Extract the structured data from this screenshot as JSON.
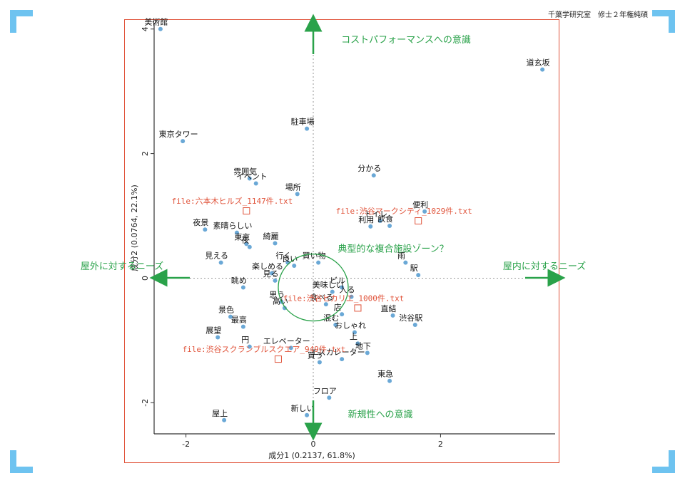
{
  "header_note": "千葉学研究室　修士２年権純碩",
  "colors": {
    "point": "#6aa8d6",
    "annotation": "#2aa24a",
    "file": "#e0533a",
    "frame": "#e0533a",
    "corner": "#6ec3f0"
  },
  "chart_data": {
    "type": "scatter",
    "xlabel": "成分1 (0.2137, 61.8%)",
    "ylabel": "成分2 (0.0764, 22.1%)",
    "xlim": [
      -2.5,
      3.8
    ],
    "ylim": [
      -2.5,
      4.1
    ],
    "xticks": [
      -2,
      0,
      2
    ],
    "yticks": [
      -2,
      0,
      2,
      4
    ],
    "points": [
      {
        "label": "美術館",
        "x": -2.4,
        "y": 4.0
      },
      {
        "label": "道玄坂",
        "x": 3.6,
        "y": 3.35
      },
      {
        "label": "東京タワー",
        "x": -2.05,
        "y": 2.2
      },
      {
        "label": "駐車場",
        "x": -0.1,
        "y": 2.4
      },
      {
        "label": "分かる",
        "x": 0.95,
        "y": 1.65
      },
      {
        "label": "雰囲気",
        "x": -1.0,
        "y": 1.6
      },
      {
        "label": "イベント",
        "x": -0.9,
        "y": 1.52
      },
      {
        "label": "場所",
        "x": -0.25,
        "y": 1.35
      },
      {
        "label": "便利",
        "x": 1.75,
        "y": 1.07
      },
      {
        "label": "トイレ",
        "x": 1.05,
        "y": 0.92
      },
      {
        "label": "利用",
        "x": 0.9,
        "y": 0.83
      },
      {
        "label": "飲食",
        "x": 1.2,
        "y": 0.84
      },
      {
        "label": "夜景",
        "x": -1.7,
        "y": 0.78
      },
      {
        "label": "素晴らしい",
        "x": -1.2,
        "y": 0.73
      },
      {
        "label": "東京",
        "x": -1.05,
        "y": 0.55
      },
      {
        "label": "夜",
        "x": -1.0,
        "y": 0.5
      },
      {
        "label": "綺麗",
        "x": -0.6,
        "y": 0.56
      },
      {
        "label": "雨",
        "x": 1.45,
        "y": 0.25
      },
      {
        "label": "駅",
        "x": 1.65,
        "y": 0.05
      },
      {
        "label": "見える",
        "x": -1.45,
        "y": 0.25
      },
      {
        "label": "行く",
        "x": -0.4,
        "y": 0.25
      },
      {
        "label": "楽しめる",
        "x": -0.65,
        "y": 0.08
      },
      {
        "label": "良い",
        "x": -0.3,
        "y": 0.2
      },
      {
        "label": "買い物",
        "x": 0.08,
        "y": 0.25
      },
      {
        "label": "眺め",
        "x": -1.1,
        "y": -0.15
      },
      {
        "label": "見る",
        "x": -0.6,
        "y": -0.04
      },
      {
        "label": "ビル",
        "x": 0.45,
        "y": -0.15
      },
      {
        "label": "美味しい",
        "x": 0.3,
        "y": -0.22
      },
      {
        "label": "思う",
        "x": -0.5,
        "y": -0.38
      },
      {
        "label": "入る",
        "x": 0.6,
        "y": -0.3
      },
      {
        "label": "食べる",
        "x": 0.2,
        "y": -0.42
      },
      {
        "label": "景色",
        "x": -1.3,
        "y": -0.62
      },
      {
        "label": "高い",
        "x": -0.45,
        "y": -0.48
      },
      {
        "label": "店",
        "x": 0.45,
        "y": -0.58
      },
      {
        "label": "直結",
        "x": 1.25,
        "y": -0.6
      },
      {
        "label": "混む",
        "x": 0.35,
        "y": -0.75
      },
      {
        "label": "最高",
        "x": -1.1,
        "y": -0.78
      },
      {
        "label": "渋谷駅",
        "x": 1.6,
        "y": -0.75
      },
      {
        "label": "おしゃれ",
        "x": 0.65,
        "y": -0.87
      },
      {
        "label": "展望",
        "x": -1.5,
        "y": -0.95
      },
      {
        "label": "円",
        "x": -1.0,
        "y": -1.1
      },
      {
        "label": "エレベーター",
        "x": -0.35,
        "y": -1.12
      },
      {
        "label": "上",
        "x": 0.7,
        "y": -1.05
      },
      {
        "label": "地下",
        "x": 0.85,
        "y": -1.2
      },
      {
        "label": "買う",
        "x": 0.1,
        "y": -1.35
      },
      {
        "label": "エスカレーター",
        "x": 0.45,
        "y": -1.3
      },
      {
        "label": "東急",
        "x": 1.2,
        "y": -1.65
      },
      {
        "label": "フロア",
        "x": 0.25,
        "y": -1.92
      },
      {
        "label": "屋上",
        "x": -1.4,
        "y": -2.28
      },
      {
        "label": "新しい",
        "x": -0.1,
        "y": -2.2
      }
    ],
    "files": [
      {
        "label": "file:六本木ヒルズ_1147件.txt",
        "x": -1.05,
        "y": 1.08
      },
      {
        "label": "file:渋谷マークシティ_1029件.txt",
        "x": 1.65,
        "y": 0.92
      },
      {
        "label": "file:渋谷ヒカリエ_1000件.txt",
        "x": 0.7,
        "y": -0.48
      },
      {
        "label": "file:渋谷スクランブルスクエア_949件.txt",
        "x": -0.55,
        "y": -1.3
      }
    ]
  },
  "annotations": {
    "top": "コストパフォーマンスへの意識",
    "bottom": "新規性への意識",
    "left": "屋外に対するニーズ",
    "right": "屋内に対するニーズ",
    "center": "典型的な複合施設ゾーン？"
  }
}
